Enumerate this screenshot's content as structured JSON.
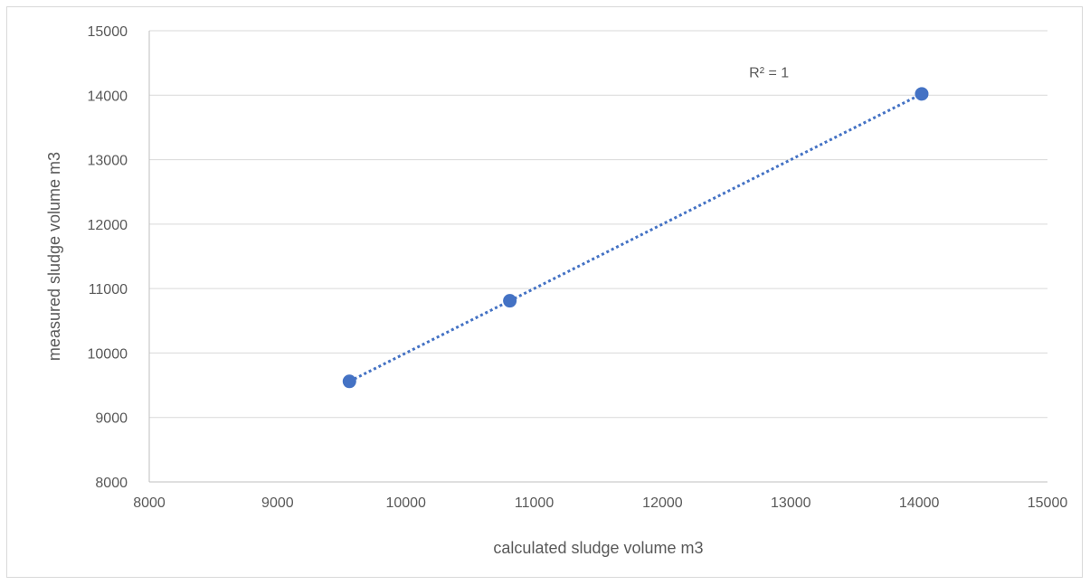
{
  "chart_data": {
    "type": "scatter",
    "title": "",
    "xlabel": "calculated sludge volume m3",
    "ylabel": "measured sludge volume  m3",
    "xlim": [
      8000,
      15000
    ],
    "ylim": [
      8000,
      15000
    ],
    "x_ticks": [
      8000,
      9000,
      10000,
      11000,
      12000,
      13000,
      14000,
      15000
    ],
    "y_ticks": [
      8000,
      9000,
      10000,
      11000,
      12000,
      13000,
      14000,
      15000
    ],
    "grid": "horizontal",
    "legend": "none",
    "series": [
      {
        "points": [
          {
            "x": 9560,
            "y": 9560
          },
          {
            "x": 10810,
            "y": 10810
          },
          {
            "x": 14020,
            "y": 14020
          }
        ],
        "color": "#4472c4"
      }
    ],
    "trendline": {
      "type": "linear",
      "style": "dotted",
      "color": "#4472c4",
      "from": {
        "x": 9560,
        "y": 9560
      },
      "to": {
        "x": 14020,
        "y": 14020
      }
    },
    "annotations": [
      {
        "text": "R² = 1"
      }
    ]
  }
}
